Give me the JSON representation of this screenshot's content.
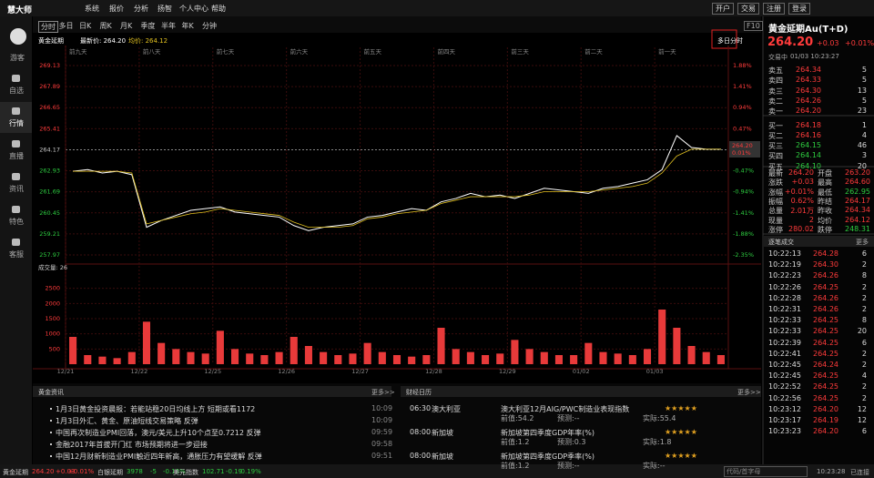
{
  "topbar": {
    "logo": "慧大师",
    "menu": [
      "系统",
      "报价",
      "分析",
      "扬智",
      "个人中心",
      "帮助"
    ],
    "buttons": [
      "开户",
      "交易",
      "注册",
      "登录"
    ]
  },
  "sidebar": [
    "游客",
    "自选",
    "行情",
    "直播",
    "资讯",
    "特色",
    "客服"
  ],
  "tabs": [
    "分时",
    "多日",
    "日K",
    "周K",
    "月K",
    "季度",
    "半年",
    "年K",
    "分钟"
  ],
  "f10": "F10",
  "multi_day": "多日分时",
  "quote_line": [
    "黄金延期",
    "最新价: 264.20",
    "均价: 264.12"
  ],
  "chart_data": [
    {
      "type": "line",
      "categories": [
        "前九天",
        null,
        null,
        null,
        null,
        "前八天",
        null,
        null,
        null,
        null,
        "前七天",
        null,
        null,
        null,
        null,
        "前六天",
        null,
        null,
        null,
        null,
        "前五天",
        null,
        null,
        null,
        null,
        "前四天",
        null,
        null,
        null,
        null,
        "前三天",
        null,
        null,
        null,
        null,
        "前二天",
        null,
        null,
        null,
        null,
        "前一天",
        null,
        null,
        null,
        null
      ],
      "series": [
        {
          "color": "#ffffff",
          "values": [
            262.9,
            263.0,
            262.8,
            262.9,
            262.7,
            259.6,
            260.0,
            260.3,
            260.6,
            260.7,
            260.8,
            260.5,
            260.4,
            260.3,
            260.2,
            259.7,
            259.4,
            259.6,
            259.7,
            259.8,
            260.2,
            260.3,
            260.5,
            260.7,
            260.6,
            261.1,
            261.3,
            261.6,
            261.4,
            261.5,
            261.3,
            261.6,
            261.9,
            261.8,
            261.7,
            261.6,
            261.9,
            262.0,
            262.2,
            262.4,
            263.0,
            265.0,
            264.3,
            264.2,
            264.2
          ]
        },
        {
          "color": "#e0c020",
          "values": [
            262.9,
            262.9,
            262.9,
            262.9,
            262.8,
            259.8,
            260.0,
            260.2,
            260.4,
            260.5,
            260.7,
            260.6,
            260.5,
            260.4,
            260.3,
            259.9,
            259.6,
            259.6,
            259.6,
            259.7,
            260.1,
            260.2,
            260.4,
            260.5,
            260.6,
            261.0,
            261.2,
            261.4,
            261.4,
            261.4,
            261.4,
            261.5,
            261.7,
            261.7,
            261.7,
            261.7,
            261.8,
            261.9,
            262.0,
            262.2,
            262.8,
            263.8,
            264.2,
            264.2,
            264.2
          ]
        }
      ],
      "ylim": [
        257.97,
        269.13
      ],
      "yticks": [
        269.13,
        267.89,
        266.65,
        265.41,
        264.17,
        262.93,
        261.69,
        260.45,
        259.21,
        257.97
      ],
      "y2lim": [
        -2.35,
        1.88
      ],
      "y2ticks": [
        {
          "value": 1.88,
          "label": "1.88%"
        },
        {
          "value": 1.41,
          "label": "1.41%"
        },
        {
          "value": 0.94,
          "label": "0.94%"
        },
        {
          "value": 0.47,
          "label": "0.47%"
        },
        {
          "value": -0.47,
          "label": "-0.47%"
        },
        {
          "value": -0.94,
          "label": "-0.94%"
        },
        {
          "value": -1.41,
          "label": "-1.41%"
        },
        {
          "value": -1.88,
          "label": "-1.88%"
        },
        {
          "value": -2.35,
          "label": "-2.35%"
        }
      ],
      "price_tag": [
        "264.20",
        "0.01%"
      ]
    },
    {
      "type": "bar",
      "title": "成交量: 26",
      "color": "#e83a3a",
      "categories": [
        "12/21",
        null,
        null,
        null,
        null,
        "12/22",
        null,
        null,
        null,
        null,
        "12/25",
        null,
        null,
        null,
        null,
        "12/26",
        null,
        null,
        null,
        null,
        "12/27",
        null,
        null,
        null,
        null,
        "12/28",
        null,
        null,
        null,
        null,
        "12/29",
        null,
        null,
        null,
        null,
        "01/02",
        null,
        null,
        null,
        null,
        "01/03",
        null,
        null,
        null,
        null
      ],
      "values": [
        900,
        300,
        250,
        200,
        400,
        1400,
        700,
        500,
        400,
        350,
        1100,
        500,
        350,
        300,
        400,
        900,
        600,
        400,
        300,
        350,
        700,
        400,
        300,
        250,
        300,
        1200,
        500,
        400,
        300,
        350,
        800,
        500,
        400,
        300,
        300,
        700,
        400,
        350,
        300,
        500,
        1800,
        1200,
        600,
        400,
        300
      ],
      "ylim": [
        0,
        3000
      ],
      "yticks": [
        500,
        1000,
        1500,
        2000,
        2500
      ]
    }
  ],
  "quote": {
    "title": "黄金延期Au(T+D)",
    "price": "264.20",
    "change": "+0.03",
    "pct": "+0.01%",
    "status": "交易中",
    "time": "01/03 10:23:27"
  },
  "order_book": [
    [
      "卖五",
      "264.34",
      "5"
    ],
    [
      "卖四",
      "264.33",
      "5"
    ],
    [
      "卖三",
      "264.30",
      "13"
    ],
    [
      "卖二",
      "264.26",
      "5"
    ],
    [
      "卖一",
      "264.20",
      "23"
    ],
    [
      "买一",
      "264.18",
      "1"
    ],
    [
      "买二",
      "264.16",
      "4"
    ],
    [
      "买三",
      "264.15",
      "46"
    ],
    [
      "买四",
      "264.14",
      "3"
    ],
    [
      "买五",
      "264.10",
      "20"
    ]
  ],
  "stats": [
    [
      "最新",
      "264.20",
      "开盘",
      "263.20"
    ],
    [
      "涨跌",
      "+0.03",
      "最高",
      "264.60"
    ],
    [
      "涨幅",
      "+0.01%",
      "最低",
      "262.95"
    ],
    [
      "振幅",
      "0.62%",
      "昨结",
      "264.17"
    ],
    [
      "总量",
      "2.01万",
      "昨收",
      "264.34"
    ],
    [
      "现量",
      "2",
      "均价",
      "264.12"
    ],
    [
      "涨停",
      "280.02",
      "跌停",
      "248.31"
    ]
  ],
  "trades": {
    "title": "逐笔成交",
    "more": "更多",
    "rows": [
      [
        "10:22:13",
        "264.28",
        "6"
      ],
      [
        "10:22:19",
        "264.30",
        "2"
      ],
      [
        "10:22:23",
        "264.26",
        "8"
      ],
      [
        "10:22:26",
        "264.25",
        "2"
      ],
      [
        "10:22:28",
        "264.26",
        "2"
      ],
      [
        "10:22:31",
        "264.26",
        "2"
      ],
      [
        "10:22:33",
        "264.25",
        "8"
      ],
      [
        "10:22:33",
        "264.25",
        "20"
      ],
      [
        "10:22:39",
        "264.25",
        "6"
      ],
      [
        "10:22:41",
        "264.25",
        "2"
      ],
      [
        "10:22:45",
        "264.24",
        "2"
      ],
      [
        "10:22:45",
        "264.25",
        "4"
      ],
      [
        "10:22:52",
        "264.25",
        "2"
      ],
      [
        "10:22:56",
        "264.25",
        "2"
      ],
      [
        "10:23:12",
        "264.20",
        "12"
      ],
      [
        "10:23:17",
        "264.19",
        "12"
      ],
      [
        "10:23:23",
        "264.20",
        "6"
      ]
    ]
  },
  "news": {
    "title": "黄金资讯",
    "more": "更多>>",
    "items": [
      [
        "1月3日黄金投资晨报：若能站稳20日均线上方 短期或看1172",
        "10:09"
      ],
      [
        "1月3日外汇、黄金、原油短线交易策略 反弹",
        "10:09"
      ],
      [
        "中国再次制造业PMI回落，澳元/美元上升10个点至0.7212 反弹",
        "09:59"
      ],
      [
        "金融2017年首拔开门红 市场预期将进一步迎接",
        "09:58"
      ],
      [
        "中国12月财新制造业PMI触近四年新高，通胀压力有望缓解 反弹",
        "09:51"
      ]
    ]
  },
  "calendar": {
    "title": "财经日历",
    "more": "更多>>",
    "items": [
      [
        "06:30",
        "澳大利亚",
        "澳大利亚12月AIG/PWC制造业表现指数",
        "前值:54.2",
        "预测:--",
        "实际:55.4"
      ],
      [
        "08:00",
        "新加坡",
        "新加坡第四季度GDP年率(%)",
        "前值:1.2",
        "预测:0.3",
        "实际:1.8"
      ],
      [
        "08:00",
        "新加坡",
        "新加坡第四季度GDP季率(%)",
        "前值:1.2",
        "预测:--",
        "实际:--"
      ]
    ]
  },
  "statusbar": {
    "items": [
      [
        "黄金延期",
        "264.20",
        "+0.03",
        "+0.01%"
      ],
      [
        "白银延期",
        "3978",
        "-5",
        "-0.13%"
      ],
      [
        "美元指数",
        "102.71",
        "-0.19",
        "-0.19%"
      ]
    ],
    "search": "代码/首字母",
    "time": "10:23:28",
    "conn": "已连接"
  }
}
